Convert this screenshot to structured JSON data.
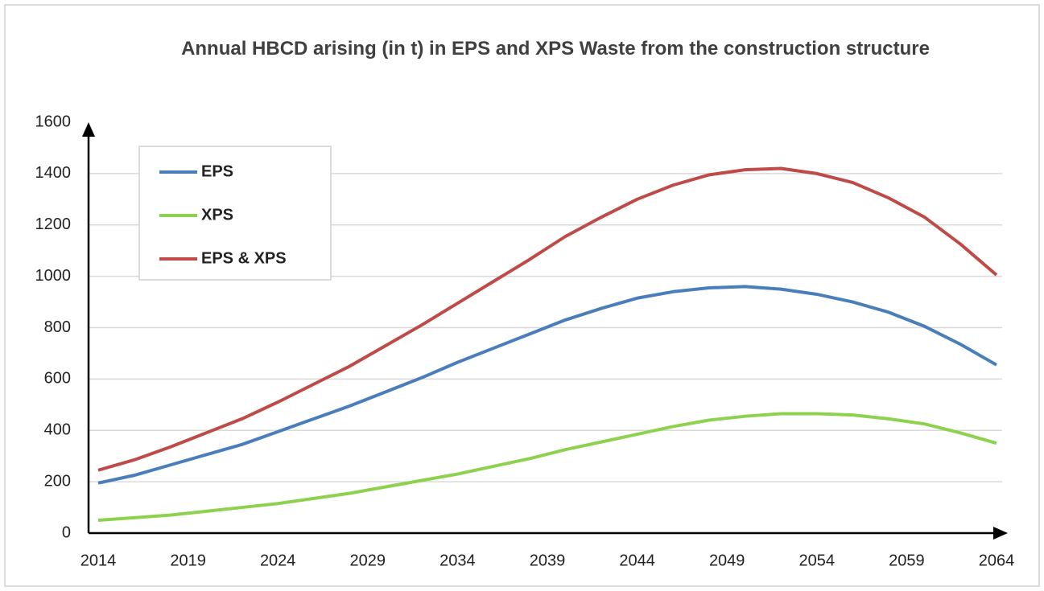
{
  "chart_data": {
    "type": "line",
    "title": "Annual HBCD arising (in t) in EPS and XPS Waste from the construction structure",
    "x": [
      2014,
      2016,
      2018,
      2020,
      2022,
      2024,
      2026,
      2028,
      2030,
      2032,
      2034,
      2036,
      2038,
      2040,
      2042,
      2044,
      2046,
      2048,
      2050,
      2052,
      2054,
      2056,
      2058,
      2060,
      2062,
      2064
    ],
    "series": [
      {
        "name": "EPS",
        "color": "#4a7ebb",
        "values": [
          195,
          225,
          265,
          305,
          345,
          395,
          445,
          495,
          550,
          605,
          665,
          720,
          775,
          830,
          875,
          915,
          940,
          955,
          960,
          950,
          930,
          900,
          860,
          805,
          735,
          655
        ]
      },
      {
        "name": "XPS",
        "color": "#8ed14f",
        "values": [
          50,
          60,
          70,
          85,
          100,
          115,
          135,
          155,
          180,
          205,
          230,
          260,
          290,
          325,
          355,
          385,
          415,
          440,
          455,
          465,
          465,
          460,
          445,
          425,
          390,
          350
        ]
      },
      {
        "name": "EPS & XPS",
        "color": "#be4b48",
        "values": [
          245,
          285,
          335,
          390,
          445,
          510,
          580,
          650,
          730,
          810,
          895,
          980,
          1065,
          1155,
          1230,
          1300,
          1355,
          1395,
          1415,
          1420,
          1400,
          1365,
          1305,
          1230,
          1125,
          1005
        ]
      }
    ],
    "xlim": [
      2014,
      2064
    ],
    "xticks": [
      2014,
      2019,
      2024,
      2029,
      2034,
      2039,
      2044,
      2049,
      2054,
      2059,
      2064
    ],
    "ylim": [
      0,
      1600
    ],
    "yticks": [
      0,
      200,
      400,
      600,
      800,
      1000,
      1200,
      1400,
      1600
    ],
    "grid": true,
    "legend": "upper-left"
  }
}
